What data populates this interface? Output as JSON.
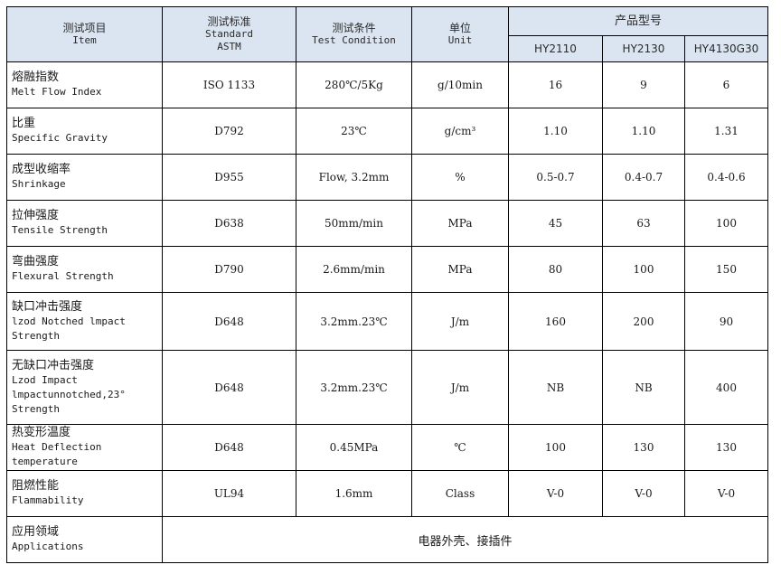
{
  "header": {
    "item_cn": "测试项目",
    "item_en": "Item",
    "standard_cn": "测试标准",
    "standard_en": "Standard",
    "standard_en2": "ASTM",
    "condition_cn": "测试条件",
    "condition_en": "Test Condition",
    "unit_cn": "单位",
    "unit_en": "Unit",
    "models_title": "产品型号",
    "models": [
      "HY2110",
      "HY2130",
      "HY4130G30"
    ]
  },
  "rows": [
    {
      "item_cn": "熔融指数",
      "item_en": [
        "Melt Flow Index"
      ],
      "standard": "ISO 1133",
      "condition": "280℃/5Kg",
      "unit": "g/10min",
      "values": [
        "16",
        "9",
        "6"
      ]
    },
    {
      "item_cn": "比重",
      "item_en": [
        "Specific Gravity"
      ],
      "standard": "D792",
      "condition": "23℃",
      "unit": "g/cm³",
      "values": [
        "1.10",
        "1.10",
        "1.31"
      ]
    },
    {
      "item_cn": "成型收缩率",
      "item_en": [
        "Shrinkage"
      ],
      "standard": "D955",
      "condition": "Flow, 3.2mm",
      "unit": "%",
      "values": [
        "0.5-0.7",
        "0.4-0.7",
        "0.4-0.6"
      ]
    },
    {
      "item_cn": "拉伸强度",
      "item_en": [
        "Tensile Strength"
      ],
      "standard": "D638",
      "condition": "50mm/min",
      "unit": "MPa",
      "values": [
        "45",
        "63",
        "100"
      ]
    },
    {
      "item_cn": "弯曲强度",
      "item_en": [
        "Flexural  Strength"
      ],
      "standard": "D790",
      "condition": "2.6mm/min",
      "unit": "MPa",
      "values": [
        "80",
        "100",
        "150"
      ]
    },
    {
      "item_cn": "缺口冲击强度",
      "item_en": [
        "lzod Notched lmpact",
        "Strength"
      ],
      "standard": "D648",
      "condition": "3.2mm.23℃",
      "unit": "J/m",
      "values": [
        "160",
        "200",
        "90"
      ]
    },
    {
      "item_cn": "无缺口冲击强度",
      "item_en": [
        "Lzod Impact",
        "lmpactunnotched,23°",
        "Strength"
      ],
      "standard": "D648",
      "condition": "3.2mm.23℃",
      "unit": "J/m",
      "values": [
        "NB",
        "NB",
        "400"
      ]
    },
    {
      "item_cn": "热变形温度",
      "item_en": [
        "Heat Deflection",
        "temperature"
      ],
      "standard": "D648",
      "condition": "0.45MPa",
      "unit": "℃",
      "values": [
        "100",
        "130",
        "130"
      ]
    },
    {
      "item_cn": "阻燃性能",
      "item_en": [
        "Flammability"
      ],
      "standard": "UL94",
      "condition": "1.6mm",
      "unit": "Class",
      "values": [
        "V-0",
        "V-0",
        "V-0"
      ]
    }
  ],
  "applications": {
    "item_cn": "应用领域",
    "item_en": "Applications",
    "value": "电器外壳、接插件"
  }
}
